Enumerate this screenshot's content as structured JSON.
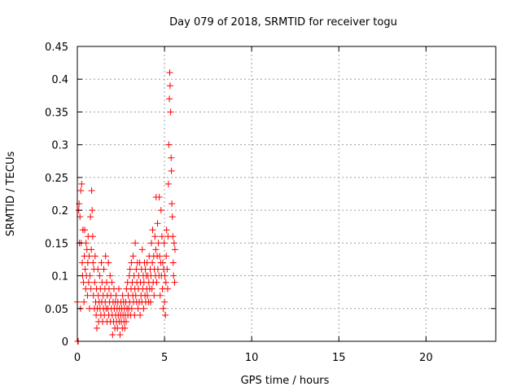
{
  "chart_data": {
    "type": "scatter",
    "title": "Day 079 of 2018, SRMTID for receiver togu",
    "xlabel": "GPS time / hours",
    "ylabel": "SRMTID / TECUs",
    "xlim": [
      0,
      24
    ],
    "ylim": [
      0,
      0.45
    ],
    "x_ticks": [
      0,
      5,
      10,
      15,
      20
    ],
    "x_tick_labels": [
      "0",
      "5",
      "10",
      "15",
      "20"
    ],
    "y_ticks": [
      0,
      0.05,
      0.1,
      0.15,
      0.2,
      0.25,
      0.3,
      0.35,
      0.4,
      0.45
    ],
    "y_tick_labels": [
      "0",
      "0.05",
      "0.1",
      "0.15",
      "0.2",
      "0.25",
      "0.3",
      "0.35",
      "0.4",
      "0.45"
    ],
    "grid": true,
    "marker": "+",
    "color": "#ff0000",
    "series": [
      {
        "name": "SRMTID",
        "points": [
          [
            0.0,
            0.06
          ],
          [
            0.02,
            0.0
          ],
          [
            0.05,
            0.0
          ],
          [
            0.08,
            0.2
          ],
          [
            0.1,
            0.21
          ],
          [
            0.12,
            0.15
          ],
          [
            0.15,
            0.19
          ],
          [
            0.18,
            0.05
          ],
          [
            0.2,
            0.23
          ],
          [
            0.22,
            0.15
          ],
          [
            0.25,
            0.24
          ],
          [
            0.28,
            0.12
          ],
          [
            0.3,
            0.1
          ],
          [
            0.32,
            0.17
          ],
          [
            0.35,
            0.09
          ],
          [
            0.38,
            0.06
          ],
          [
            0.4,
            0.13
          ],
          [
            0.42,
            0.17
          ],
          [
            0.45,
            0.11
          ],
          [
            0.48,
            0.08
          ],
          [
            0.5,
            0.15
          ],
          [
            0.52,
            0.1
          ],
          [
            0.55,
            0.14
          ],
          [
            0.58,
            0.07
          ],
          [
            0.6,
            0.12
          ],
          [
            0.62,
            0.16
          ],
          [
            0.65,
            0.09
          ],
          [
            0.68,
            0.13
          ],
          [
            0.7,
            0.05
          ],
          [
            0.72,
            0.1
          ],
          [
            0.75,
            0.19
          ],
          [
            0.78,
            0.08
          ],
          [
            0.8,
            0.14
          ],
          [
            0.82,
            0.23
          ],
          [
            0.85,
            0.2
          ],
          [
            0.88,
            0.16
          ],
          [
            0.9,
            0.12
          ],
          [
            0.92,
            0.07
          ],
          [
            0.95,
            0.11
          ],
          [
            0.98,
            0.05
          ],
          [
            1.0,
            0.09
          ],
          [
            1.02,
            0.13
          ],
          [
            1.05,
            0.06
          ],
          [
            1.08,
            0.04
          ],
          [
            1.1,
            0.08
          ],
          [
            1.12,
            0.02
          ],
          [
            1.15,
            0.05
          ],
          [
            1.18,
            0.11
          ],
          [
            1.2,
            0.07
          ],
          [
            1.22,
            0.03
          ],
          [
            1.25,
            0.06
          ],
          [
            1.28,
            0.1
          ],
          [
            1.3,
            0.05
          ],
          [
            1.32,
            0.08
          ],
          [
            1.35,
            0.04
          ],
          [
            1.38,
            0.12
          ],
          [
            1.4,
            0.06
          ],
          [
            1.42,
            0.09
          ],
          [
            1.45,
            0.03
          ],
          [
            1.48,
            0.07
          ],
          [
            1.5,
            0.05
          ],
          [
            1.52,
            0.11
          ],
          [
            1.55,
            0.04
          ],
          [
            1.58,
            0.08
          ],
          [
            1.6,
            0.06
          ],
          [
            1.62,
            0.13
          ],
          [
            1.65,
            0.05
          ],
          [
            1.68,
            0.09
          ],
          [
            1.7,
            0.03
          ],
          [
            1.72,
            0.07
          ],
          [
            1.75,
            0.05
          ],
          [
            1.78,
            0.12
          ],
          [
            1.8,
            0.04
          ],
          [
            1.82,
            0.08
          ],
          [
            1.85,
            0.06
          ],
          [
            1.88,
            0.1
          ],
          [
            1.9,
            0.03
          ],
          [
            1.92,
            0.07
          ],
          [
            1.95,
            0.05
          ],
          [
            1.98,
            0.09
          ],
          [
            2.0,
            0.04
          ],
          [
            2.02,
            0.01
          ],
          [
            2.05,
            0.06
          ],
          [
            2.08,
            0.03
          ],
          [
            2.1,
            0.08
          ],
          [
            2.12,
            0.05
          ],
          [
            2.15,
            0.02
          ],
          [
            2.18,
            0.06
          ],
          [
            2.2,
            0.04
          ],
          [
            2.22,
            0.07
          ],
          [
            2.25,
            0.03
          ],
          [
            2.28,
            0.05
          ],
          [
            2.3,
            0.02
          ],
          [
            2.32,
            0.06
          ],
          [
            2.35,
            0.04
          ],
          [
            2.38,
            0.08
          ],
          [
            2.4,
            0.03
          ],
          [
            2.42,
            0.05
          ],
          [
            2.45,
            0.01
          ],
          [
            2.48,
            0.04
          ],
          [
            2.5,
            0.06
          ],
          [
            2.52,
            0.03
          ],
          [
            2.55,
            0.05
          ],
          [
            2.58,
            0.02
          ],
          [
            2.6,
            0.07
          ],
          [
            2.62,
            0.04
          ],
          [
            2.65,
            0.06
          ],
          [
            2.68,
            0.03
          ],
          [
            2.7,
            0.05
          ],
          [
            2.72,
            0.02
          ],
          [
            2.75,
            0.04
          ],
          [
            2.78,
            0.06
          ],
          [
            2.8,
            0.03
          ],
          [
            2.82,
            0.08
          ],
          [
            2.85,
            0.05
          ],
          [
            2.88,
            0.09
          ],
          [
            2.9,
            0.04
          ],
          [
            2.92,
            0.07
          ],
          [
            2.95,
            0.05
          ],
          [
            2.98,
            0.1
          ],
          [
            3.0,
            0.06
          ],
          [
            3.02,
            0.11
          ],
          [
            3.05,
            0.04
          ],
          [
            3.08,
            0.08
          ],
          [
            3.1,
            0.12
          ],
          [
            3.12,
            0.05
          ],
          [
            3.15,
            0.09
          ],
          [
            3.18,
            0.07
          ],
          [
            3.2,
            0.13
          ],
          [
            3.22,
            0.06
          ],
          [
            3.25,
            0.1
          ],
          [
            3.28,
            0.04
          ],
          [
            3.3,
            0.08
          ],
          [
            3.32,
            0.15
          ],
          [
            3.35,
            0.07
          ],
          [
            3.38,
            0.11
          ],
          [
            3.4,
            0.06
          ],
          [
            3.42,
            0.09
          ],
          [
            3.45,
            0.12
          ],
          [
            3.48,
            0.05
          ],
          [
            3.5,
            0.08
          ],
          [
            3.52,
            0.1
          ],
          [
            3.55,
            0.06
          ],
          [
            3.58,
            0.12
          ],
          [
            3.6,
            0.04
          ],
          [
            3.62,
            0.09
          ],
          [
            3.65,
            0.07
          ],
          [
            3.68,
            0.11
          ],
          [
            3.7,
            0.06
          ],
          [
            3.72,
            0.14
          ],
          [
            3.75,
            0.08
          ],
          [
            3.78,
            0.1
          ],
          [
            3.8,
            0.05
          ],
          [
            3.82,
            0.09
          ],
          [
            3.85,
            0.12
          ],
          [
            3.88,
            0.07
          ],
          [
            3.9,
            0.11
          ],
          [
            3.92,
            0.06
          ],
          [
            3.95,
            0.1
          ],
          [
            3.98,
            0.08
          ],
          [
            4.0,
            0.12
          ],
          [
            4.02,
            0.07
          ],
          [
            4.05,
            0.1
          ],
          [
            4.08,
            0.06
          ],
          [
            4.1,
            0.09
          ],
          [
            4.12,
            0.13
          ],
          [
            4.15,
            0.08
          ],
          [
            4.18,
            0.11
          ],
          [
            4.2,
            0.06
          ],
          [
            4.22,
            0.1
          ],
          [
            4.25,
            0.15
          ],
          [
            4.28,
            0.08
          ],
          [
            4.3,
            0.12
          ],
          [
            4.32,
            0.17
          ],
          [
            4.35,
            0.09
          ],
          [
            4.38,
            0.13
          ],
          [
            4.4,
            0.07
          ],
          [
            4.42,
            0.11
          ],
          [
            4.45,
            0.16
          ],
          [
            4.48,
            0.1
          ],
          [
            4.5,
            0.14
          ],
          [
            4.52,
            0.22
          ],
          [
            4.55,
            0.09
          ],
          [
            4.58,
            0.13
          ],
          [
            4.6,
            0.18
          ],
          [
            4.62,
            0.11
          ],
          [
            4.65,
            0.15
          ],
          [
            4.68,
            0.1
          ],
          [
            4.7,
            0.22
          ],
          [
            4.72,
            0.13
          ],
          [
            4.75,
            0.07
          ],
          [
            4.78,
            0.12
          ],
          [
            4.8,
            0.2
          ],
          [
            4.82,
            0.1
          ],
          [
            4.85,
            0.16
          ],
          [
            4.88,
            0.08
          ],
          [
            4.9,
            0.12
          ],
          [
            4.92,
            0.05
          ],
          [
            4.95,
            0.11
          ],
          [
            4.98,
            0.15
          ],
          [
            5.0,
            0.06
          ],
          [
            5.02,
            0.1
          ],
          [
            5.05,
            0.04
          ],
          [
            5.08,
            0.09
          ],
          [
            5.1,
            0.13
          ],
          [
            5.12,
            0.17
          ],
          [
            5.15,
            0.11
          ],
          [
            5.18,
            0.08
          ],
          [
            5.2,
            0.16
          ],
          [
            5.22,
            0.24
          ],
          [
            5.25,
            0.3
          ],
          [
            5.28,
            0.37
          ],
          [
            5.3,
            0.41
          ],
          [
            5.32,
            0.39
          ],
          [
            5.35,
            0.35
          ],
          [
            5.38,
            0.28
          ],
          [
            5.4,
            0.26
          ],
          [
            5.42,
            0.21
          ],
          [
            5.45,
            0.19
          ],
          [
            5.48,
            0.16
          ],
          [
            5.5,
            0.12
          ],
          [
            5.52,
            0.1
          ],
          [
            5.55,
            0.15
          ],
          [
            5.58,
            0.09
          ],
          [
            5.6,
            0.14
          ]
        ]
      }
    ]
  }
}
